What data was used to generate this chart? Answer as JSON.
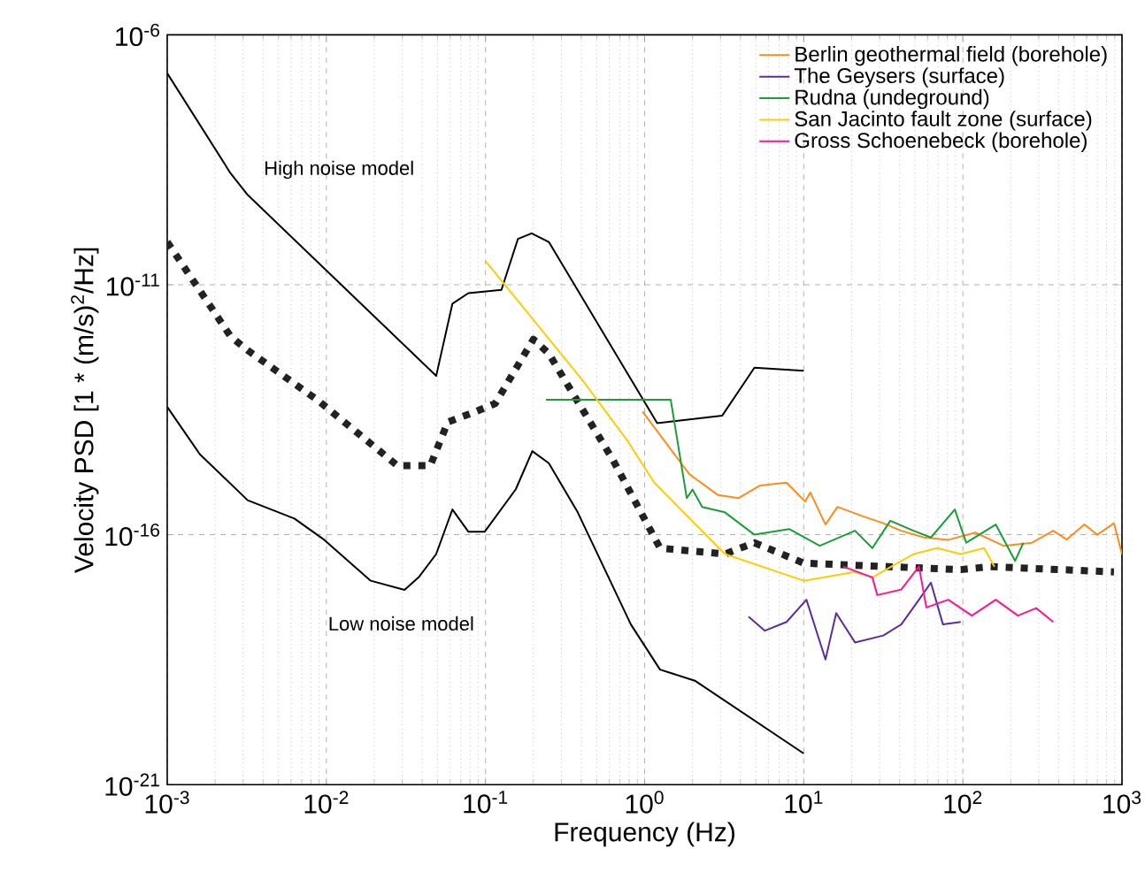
{
  "chart_data": {
    "type": "line",
    "xlabel": "Frequency (Hz)",
    "ylabel": "Velocity PSD [1 * (m/s)$^{2}$/Hz]",
    "log": "xy",
    "grid": true,
    "legend": "top right",
    "xlim": [
      0.001,
      1000
    ],
    "ylim": [
      1e-21,
      1e-06
    ],
    "xticks": [
      {
        "value": 0.001,
        "label": "10$^{-3}$"
      },
      {
        "value": 0.01,
        "label": "10$^{-2}$"
      },
      {
        "value": 0.1,
        "label": "10$^{-1}$"
      },
      {
        "value": 1,
        "label": "10$^{0}$"
      },
      {
        "value": 10,
        "label": "10$^{1}$"
      },
      {
        "value": 100,
        "label": "10$^{2}$"
      },
      {
        "value": 1000,
        "label": "10$^{3}$"
      }
    ],
    "yticks": [
      {
        "value": 1e-21,
        "label": "10$^{-21}$"
      },
      {
        "value": 1e-16,
        "label": "10$^{-16}$"
      },
      {
        "value": 1e-11,
        "label": "10$^{-11}$"
      },
      {
        "value": 1e-06,
        "label": "10$^{-6}$"
      }
    ],
    "annotations": [
      "High noise model",
      "Low noise model"
    ],
    "series": [
      {
        "color": "#000000",
        "line_style": "solid",
        "x": [
          0.001,
          0.0025,
          0.0032,
          0.049,
          0.062,
          0.078,
          0.126,
          0.16,
          0.195,
          0.25,
          1.2,
          3.07,
          4.9,
          10
        ],
        "values": [
          1.7e-07,
          1.7e-09,
          6.3e-10,
          1.5e-13,
          4.2e-12,
          6.8e-12,
          7.9e-12,
          8.3e-11,
          1.07e-10,
          7.2e-11,
          1.7e-14,
          2.4e-14,
          2.2e-13,
          1.9e-13
        ]
      },
      {
        "color": "#000000",
        "line_style": "solid",
        "x": [
          0.001,
          0.0016,
          0.0032,
          0.0063,
          0.0097,
          0.019,
          0.031,
          0.038,
          0.049,
          0.062,
          0.078,
          0.099,
          0.155,
          0.197,
          0.25,
          0.38,
          0.82,
          1.25,
          2.07,
          10
        ],
        "values": [
          3.6e-14,
          4.1e-15,
          4.9e-16,
          2.1e-16,
          7.9e-17,
          1.2e-17,
          7.9e-18,
          1.4e-17,
          4.1e-17,
          3.2e-16,
          1.15e-16,
          1.15e-16,
          8.1e-16,
          4.7e-15,
          2.7e-15,
          2.8e-16,
          1.6e-18,
          2e-19,
          1.2e-19,
          4.2e-21
        ]
      },
      {
        "color": "#222222",
        "line_style": "dotted",
        "x": [
          0.001,
          0.0025,
          0.0032,
          0.0089,
          0.028,
          0.045,
          0.058,
          0.082,
          0.115,
          0.2,
          0.25,
          0.63,
          1.25,
          3.2,
          4.9,
          10,
          97,
          148,
          890
        ],
        "values": [
          7.2e-11,
          9.3e-13,
          4.9e-13,
          4.8e-14,
          2.4e-15,
          2.4e-15,
          1.8e-14,
          2.7e-14,
          4.2e-14,
          8.1e-13,
          4.2e-13,
          3.2e-15,
          5.4e-17,
          4.1e-17,
          6.9e-17,
          2.7e-17,
          2e-17,
          2.3e-17,
          1.8e-17
        ]
      },
      {
        "name": "Berlin geothermal field (borehole)",
        "color": "#ff8c1a",
        "line_style": "solid",
        "x": [
          0.97,
          1.92,
          2.9,
          3.9,
          5.3,
          7.8,
          10.2,
          11,
          13.7,
          16.3,
          23,
          31.6,
          41,
          57,
          81,
          120,
          180,
          272,
          370,
          450,
          580,
          700,
          890,
          1000
        ],
        "values": [
          2.9e-14,
          1.6e-15,
          6.2e-16,
          5.4e-16,
          9.6e-16,
          1.1e-15,
          4.6e-16,
          7e-16,
          1.6e-16,
          3.6e-16,
          2.4e-16,
          1.7e-16,
          1.2e-16,
          8.8e-17,
          7.9e-17,
          1.1e-16,
          6e-17,
          6.9e-17,
          1.2e-16,
          8e-17,
          1.6e-16,
          1e-16,
          1.7e-16,
          4.1e-17
        ]
      },
      {
        "name": "The Geysers (surface)",
        "color": "#5b2c9e",
        "line_style": "solid",
        "x": [
          4.5,
          5.7,
          7.8,
          10.4,
          12,
          13.7,
          16,
          21,
          31.6,
          41,
          53,
          63,
          75,
          97
        ],
        "values": [
          2.3e-18,
          1.2e-18,
          1.8e-18,
          5e-18,
          1.2e-18,
          3.2e-19,
          2.7e-18,
          7e-19,
          9.6e-19,
          1.6e-18,
          5e-18,
          1.1e-17,
          1.6e-18,
          1.8e-18
        ]
      },
      {
        "name": "Rudna (undeground)",
        "color": "#1a9e3a",
        "line_style": "solid",
        "x": [
          0.24,
          1.46,
          1.84,
          2.0,
          2.3,
          3.2,
          4.9,
          8.1,
          12.6,
          21,
          27,
          35,
          49,
          63,
          89,
          105,
          161,
          213,
          240
        ],
        "values": [
          5e-14,
          5e-14,
          5.4e-16,
          8e-16,
          3.6e-16,
          2.8e-16,
          1e-16,
          1.3e-16,
          6e-17,
          1.2e-16,
          5.4e-17,
          1.9e-16,
          1.2e-16,
          8.8e-17,
          3.2e-16,
          6.9e-17,
          1.6e-16,
          3e-17,
          6.9e-17
        ]
      },
      {
        "name": "San Jacinto fault zone (surface)",
        "color": "#ffcc00",
        "line_style": "solid",
        "x": [
          0.1,
          0.41,
          0.78,
          1.15,
          3.2,
          10,
          21,
          27,
          49,
          69,
          97,
          136,
          158
        ],
        "values": [
          3e-11,
          1.2e-13,
          7.6e-15,
          1.1e-15,
          4.1e-17,
          1.2e-17,
          1.8e-17,
          1.4e-17,
          4.1e-17,
          5.4e-17,
          4.1e-17,
          5.4e-17,
          2.3e-17
        ]
      },
      {
        "name": "Gross Schoenebeck (borehole)",
        "color": "#ff1493",
        "line_style": "solid",
        "x": [
          17.7,
          27,
          29,
          41,
          53,
          59,
          81,
          114,
          161,
          222,
          289,
          370
        ],
        "values": [
          2.3e-17,
          1.4e-17,
          6.2e-18,
          8e-18,
          2.3e-17,
          3.5e-18,
          5e-18,
          2.4e-18,
          5e-18,
          2.4e-18,
          3.4e-18,
          1.8e-18
        ]
      }
    ]
  }
}
